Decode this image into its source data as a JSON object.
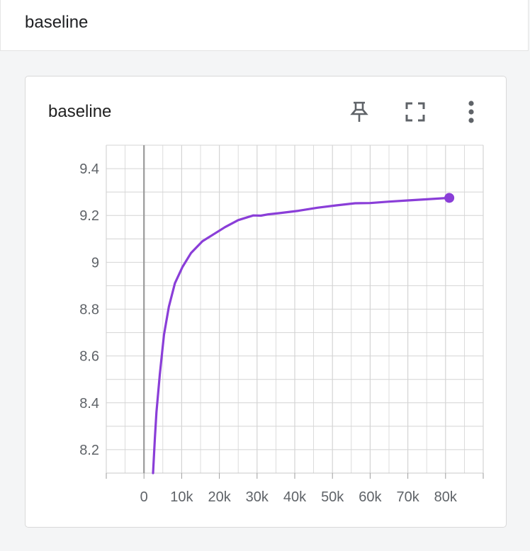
{
  "header": {
    "title": "baseline"
  },
  "card": {
    "title": "baseline",
    "toolbar": [
      {
        "name": "pin-button",
        "icon": "pin-icon"
      },
      {
        "name": "fullscreen-button",
        "icon": "fullscreen-icon"
      },
      {
        "name": "more-options-button",
        "icon": "more-vert-icon"
      }
    ]
  },
  "colors": {
    "series": "#8a3ed8",
    "grid": "#d4d4d4",
    "zero_axis": "#9a9a9a",
    "tick_text": "#5f6368"
  },
  "chart_data": {
    "type": "line",
    "title": "",
    "xlabel": "",
    "ylabel": "",
    "xlim": [
      -10000,
      90000
    ],
    "ylim": [
      8.1,
      9.5
    ],
    "x_ticks": [
      0,
      10000,
      20000,
      30000,
      40000,
      50000,
      60000,
      70000,
      80000
    ],
    "x_tick_labels": [
      "0",
      "10k",
      "20k",
      "30k",
      "40k",
      "50k",
      "60k",
      "70k",
      "80k"
    ],
    "y_ticks": [
      8.2,
      8.4,
      8.6,
      8.8,
      9.0,
      9.2,
      9.4
    ],
    "y_tick_labels": [
      "8.2",
      "8.4",
      "8.6",
      "8.8",
      "9",
      "9.2",
      "9.4"
    ],
    "grid": true,
    "series": [
      {
        "values_xy": [
          [
            2400,
            8.1
          ],
          [
            2900,
            8.25
          ],
          [
            3300,
            8.36
          ],
          [
            4200,
            8.52
          ],
          [
            5300,
            8.69
          ],
          [
            6600,
            8.81
          ],
          [
            8200,
            8.91
          ],
          [
            10200,
            8.98
          ],
          [
            12500,
            9.04
          ],
          [
            15500,
            9.09
          ],
          [
            18500,
            9.12
          ],
          [
            21500,
            9.15
          ],
          [
            25000,
            9.18
          ],
          [
            29000,
            9.2
          ],
          [
            31000,
            9.199
          ],
          [
            33000,
            9.205
          ],
          [
            36000,
            9.21
          ],
          [
            41000,
            9.22
          ],
          [
            46000,
            9.233
          ],
          [
            51000,
            9.243
          ],
          [
            56000,
            9.252
          ],
          [
            60000,
            9.253
          ],
          [
            65000,
            9.259
          ],
          [
            70000,
            9.264
          ],
          [
            75000,
            9.269
          ],
          [
            81000,
            9.275
          ]
        ],
        "last_point": [
          81000,
          9.275
        ]
      }
    ]
  }
}
